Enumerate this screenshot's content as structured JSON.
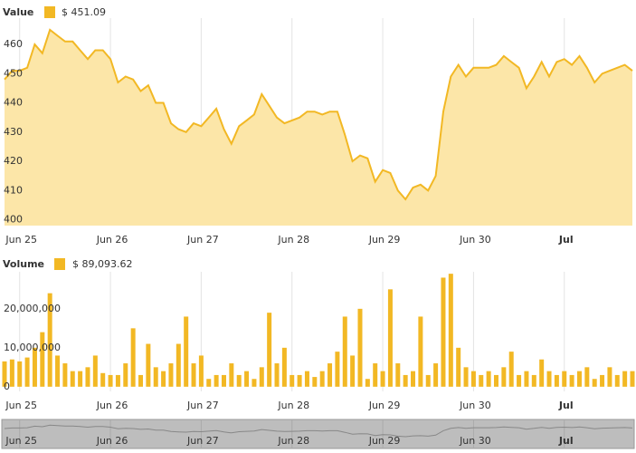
{
  "chart_data": {
    "type": "area-volume",
    "price_label": "Value",
    "price_legend": "$ 451.09",
    "volume_label": "Volume",
    "volume_legend": "$ 89,093.62",
    "color": "#f2b824",
    "fill": "#fce6a8",
    "categories": [
      null,
      null,
      "Jun 25",
      null,
      null,
      null,
      null,
      null,
      null,
      null,
      null,
      null,
      null,
      null,
      "Jun 26",
      null,
      null,
      null,
      null,
      null,
      null,
      null,
      null,
      null,
      null,
      null,
      "Jun 27",
      null,
      null,
      null,
      null,
      null,
      null,
      null,
      null,
      null,
      null,
      null,
      "Jun 28",
      null,
      null,
      null,
      null,
      null,
      null,
      null,
      null,
      null,
      null,
      null,
      "Jun 29",
      null,
      null,
      null,
      null,
      null,
      null,
      null,
      null,
      null,
      null,
      null,
      "Jun 30",
      null,
      null,
      null,
      null,
      null,
      null,
      null,
      null,
      null,
      null,
      null,
      "Jul",
      null,
      null,
      null,
      null,
      null,
      null,
      null,
      null,
      null
    ],
    "xticks": [
      2,
      14,
      26,
      38,
      50,
      62,
      74
    ],
    "price": [
      448,
      451,
      451,
      452,
      460,
      457,
      465,
      463,
      461,
      461,
      458,
      455,
      458,
      458,
      455,
      447,
      449,
      448,
      444,
      446,
      440,
      440,
      433,
      431,
      430,
      433,
      432,
      435,
      438,
      431,
      426,
      432,
      434,
      436,
      443,
      439,
      435,
      433,
      434,
      435,
      437,
      437,
      436,
      437,
      437,
      429,
      420,
      422,
      421,
      413,
      417,
      416,
      410,
      407,
      411,
      412,
      410,
      415,
      437,
      449,
      453,
      449,
      452,
      452,
      452,
      453,
      456,
      454,
      452,
      445,
      449,
      454,
      449,
      454,
      455,
      453,
      456,
      452,
      447,
      450,
      451,
      452,
      453,
      451
    ],
    "ylim": [
      398,
      469
    ],
    "yticks": [
      400,
      410,
      420,
      430,
      440,
      450,
      460
    ],
    "volume": [
      6500000,
      7000000,
      6500000,
      7500000,
      10000000,
      14000000,
      24000000,
      8000000,
      6000000,
      4000000,
      4000000,
      5000000,
      8000000,
      3500000,
      3000000,
      3000000,
      6000000,
      15000000,
      3000000,
      11000000,
      5000000,
      4000000,
      6000000,
      11000000,
      18000000,
      6000000,
      8000000,
      2000000,
      3000000,
      3000000,
      6000000,
      3000000,
      4000000,
      2000000,
      5000000,
      19000000,
      6000000,
      10000000,
      3000000,
      3000000,
      4000000,
      2500000,
      4000000,
      6000000,
      9000000,
      18000000,
      8000000,
      20000000,
      2000000,
      6000000,
      4000000,
      25000000,
      6000000,
      3000000,
      4000000,
      18000000,
      3000000,
      6000000,
      28000000,
      29000000,
      10000000,
      5000000,
      4000000,
      3000000,
      4000000,
      3000000,
      5000000,
      9000000,
      3000000,
      4000000,
      3000000,
      7000000,
      4000000,
      3000000,
      4000000,
      3000000,
      4000000,
      5000000,
      2000000,
      3000000,
      5000000,
      3000000,
      4000000,
      4000000
    ],
    "vlim": [
      -1200000,
      29500000
    ],
    "vticks": [
      0,
      {
        "value": 10000000,
        "label": "10,000,000"
      },
      {
        "value": 20000000,
        "label": "20,000,000"
      }
    ]
  }
}
